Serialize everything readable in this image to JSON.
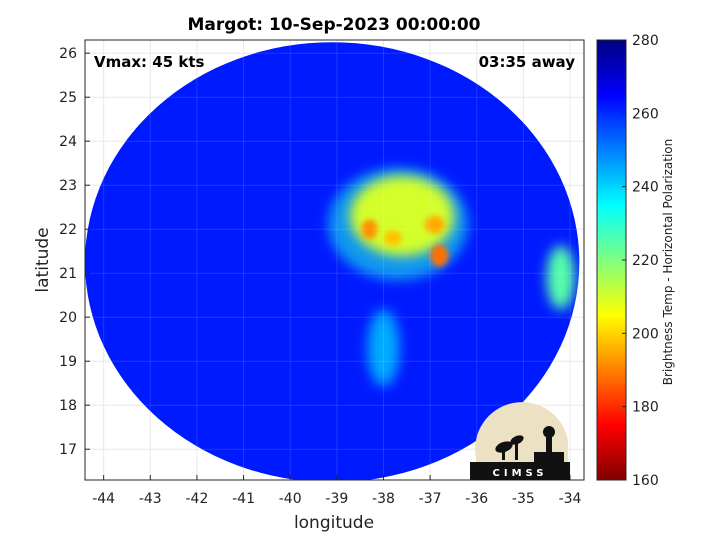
{
  "chart_data": {
    "type": "heatmap",
    "title": "Margot: 10-Sep-2023 00:00:00",
    "xlabel": "longitude",
    "ylabel": "latitude",
    "xlim": [
      -44.4,
      -33.7
    ],
    "ylim": [
      16.3,
      26.3
    ],
    "x_ticks": [
      -44,
      -43,
      -42,
      -41,
      -40,
      -39,
      -38,
      -37,
      -36,
      -35,
      -34
    ],
    "y_ticks": [
      17,
      18,
      19,
      20,
      21,
      22,
      23,
      24,
      25,
      26
    ],
    "grid": true,
    "annotations": {
      "vmax": "Vmax: 45 kts",
      "time_away": "03:35 away"
    },
    "colorbar": {
      "label": "Brightness Temp - Horizontal Polarization",
      "range": [
        160,
        280
      ],
      "ticks": [
        160,
        180,
        200,
        220,
        240,
        260,
        280
      ],
      "colormap": "jet"
    },
    "swath": {
      "center_lon": -39.1,
      "center_lat": 21.25,
      "radius_lon": 5.3,
      "radius_lat": 5.0
    },
    "features": [
      {
        "name": "background",
        "lon": -39.5,
        "lat": 21.0,
        "temp": 262
      },
      {
        "name": "cold-cloud-mass",
        "lon": -37.6,
        "lat": 22.3,
        "temp": 210
      },
      {
        "name": "core-1",
        "lon": -38.3,
        "lat": 22.0,
        "temp": 192
      },
      {
        "name": "core-2",
        "lon": -37.8,
        "lat": 21.8,
        "temp": 198
      },
      {
        "name": "core-3",
        "lon": -36.8,
        "lat": 21.4,
        "temp": 188
      },
      {
        "name": "core-4",
        "lon": -36.9,
        "lat": 22.1,
        "temp": 195
      },
      {
        "name": "east-band",
        "lon": -34.2,
        "lat": 20.9,
        "temp": 225
      },
      {
        "name": "tail-band",
        "lon": -38.0,
        "lat": 19.3,
        "temp": 245
      }
    ]
  },
  "logo": {
    "text": "CIMSS"
  }
}
